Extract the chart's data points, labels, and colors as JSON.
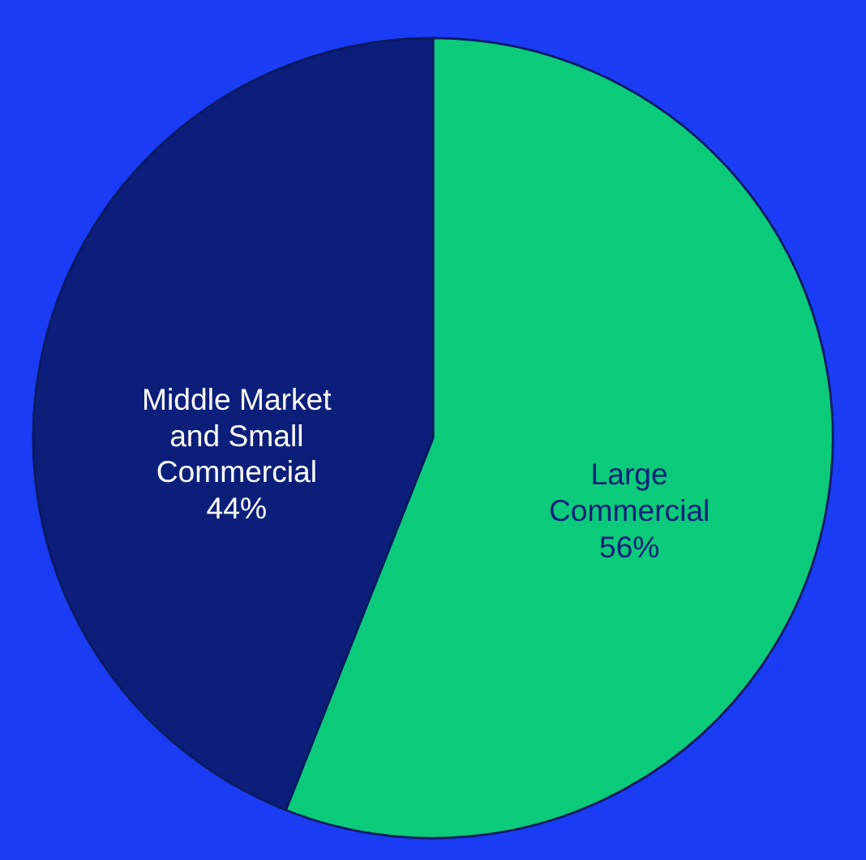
{
  "chart_data": {
    "type": "pie",
    "categories": [
      "Large Commercial",
      "Middle Market and Small Commercial"
    ],
    "values": [
      56,
      44
    ],
    "colors": [
      "#0bcb7a",
      "#0b1f7a"
    ],
    "value_labels": [
      "56%",
      "44%"
    ]
  }
}
